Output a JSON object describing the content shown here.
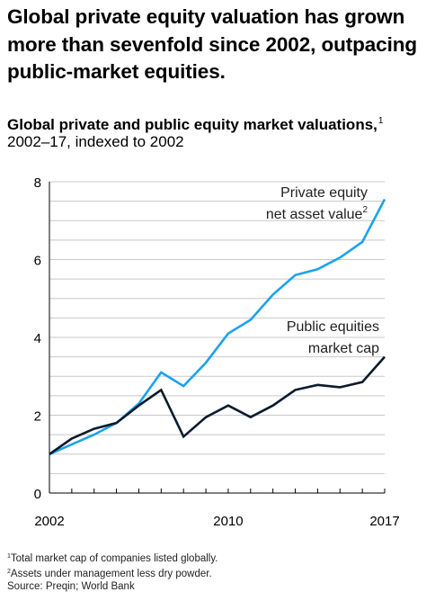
{
  "headline": "Global private equity valuation has grown more than sevenfold since 2002, outpacing public-market equities.",
  "colors": {
    "private": "#1aa3ea",
    "public": "#0b1a2c",
    "grid": "#c8c8c8",
    "axis": "#000000"
  },
  "chart_data": {
    "type": "line",
    "title": "Global private and public equity market valuations,",
    "title_note": "1",
    "subtitle": "2002–17, indexed to 2002",
    "x": [
      2002,
      2003,
      2004,
      2005,
      2006,
      2007,
      2008,
      2009,
      2010,
      2011,
      2012,
      2013,
      2014,
      2015,
      2016,
      2017
    ],
    "ylim": [
      0,
      8
    ],
    "y_ticks": [
      "0",
      "2",
      "4",
      "6",
      "8"
    ],
    "x_tick_labels": [
      {
        "x": 2002,
        "label": "2002"
      },
      {
        "x": 2010,
        "label": "2010"
      },
      {
        "x": 2017,
        "label": "2017"
      }
    ],
    "grid": true,
    "series": [
      {
        "name_line1": "Private equity",
        "name_line2": "net asset value",
        "name_note": "2",
        "values": [
          1.0,
          1.25,
          1.5,
          1.8,
          2.3,
          3.1,
          2.75,
          3.35,
          4.1,
          4.45,
          5.1,
          5.6,
          5.75,
          6.05,
          6.45,
          7.55
        ]
      },
      {
        "name_line1": "Public equities",
        "name_line2": "market cap",
        "values": [
          1.0,
          1.4,
          1.65,
          1.8,
          2.25,
          2.65,
          1.45,
          1.95,
          2.25,
          1.95,
          2.25,
          2.65,
          2.78,
          2.72,
          2.85,
          3.5
        ]
      }
    ]
  },
  "footnotes": [
    {
      "mark": "1",
      "text": "Total market cap of companies listed globally."
    },
    {
      "mark": "2",
      "text": "Assets under management less dry powder."
    },
    {
      "mark": "",
      "text": " Source: Preqin; World Bank"
    }
  ]
}
